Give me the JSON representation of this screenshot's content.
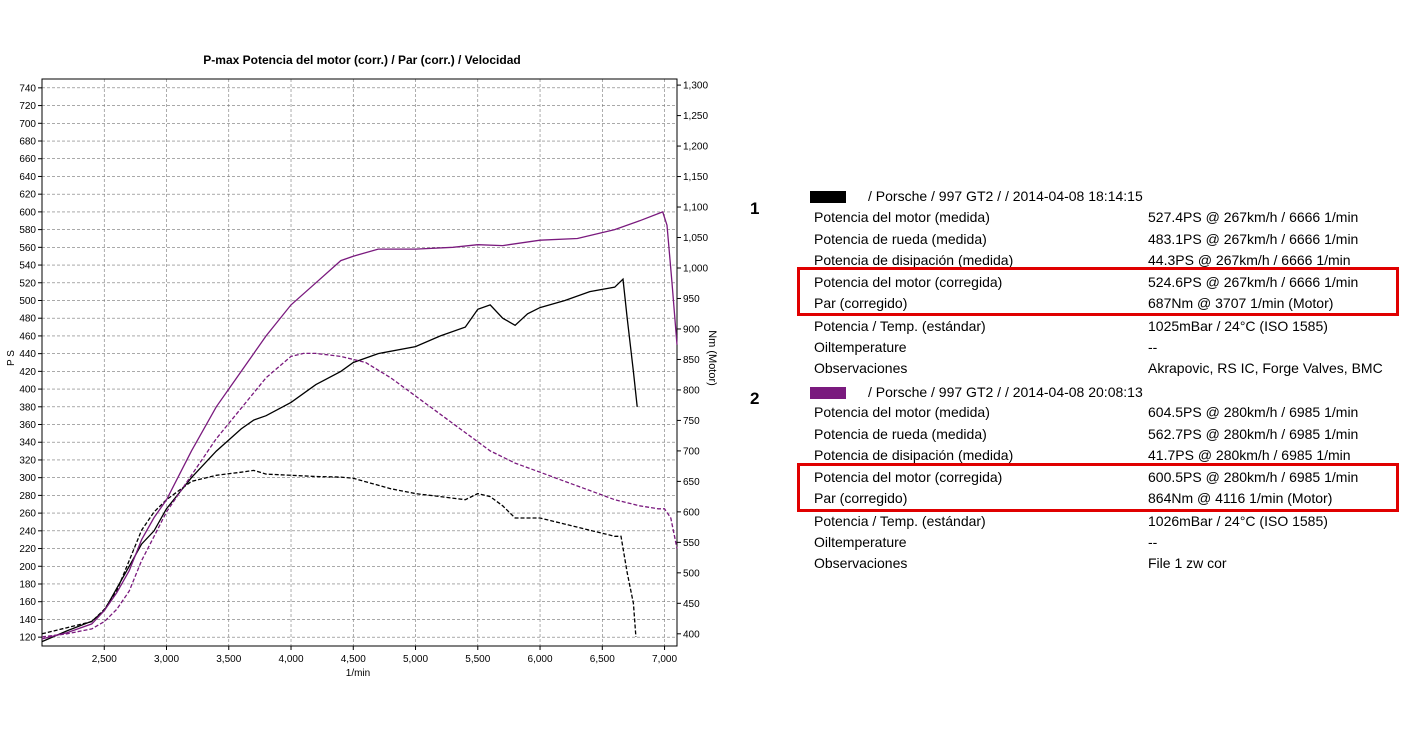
{
  "chart_data": {
    "type": "line",
    "title": "P-max Potencia del motor (corr.) / Par (corr.) / Velocidad",
    "xlabel": "1/min",
    "ylabel_left": "P S",
    "ylabel_right": "Nm (Motor)",
    "xlim": [
      2000,
      7100
    ],
    "ylim_left": [
      110,
      750
    ],
    "ylim_right": [
      380,
      1310
    ],
    "xticks": [
      2500,
      3000,
      3500,
      4000,
      4500,
      5000,
      5500,
      6000,
      6500,
      7000
    ],
    "xtick_labels": [
      "2,500",
      "3,000",
      "3,500",
      "4,000",
      "4,500",
      "5,000",
      "5,500",
      "6,000",
      "6,500",
      "7,000"
    ],
    "yticks_left": [
      120,
      140,
      160,
      180,
      200,
      220,
      240,
      260,
      280,
      300,
      320,
      340,
      360,
      380,
      400,
      420,
      440,
      460,
      480,
      500,
      520,
      540,
      560,
      580,
      600,
      620,
      640,
      660,
      680,
      700,
      720,
      740
    ],
    "yticks_right": [
      400,
      450,
      500,
      550,
      600,
      650,
      700,
      750,
      800,
      850,
      900,
      950,
      1000,
      1050,
      1100,
      1150,
      1200,
      1250,
      1300
    ],
    "ytick_right_labels": [
      "400",
      "450",
      "500",
      "550",
      "600",
      "650",
      "700",
      "750",
      "800",
      "850",
      "900",
      "950",
      "1,000",
      "1,050",
      "1,100",
      "1,150",
      "1,200",
      "1,250",
      "1,300"
    ],
    "grid": true,
    "series": [
      {
        "color": "#000000",
        "axis": "left",
        "style": "solid",
        "x": [
          2000,
          2200,
          2400,
          2500,
          2600,
          2700,
          2800,
          2900,
          3000,
          3200,
          3400,
          3600,
          3700,
          3800,
          4000,
          4200,
          4400,
          4500,
          4700,
          5000,
          5200,
          5400,
          5500,
          5600,
          5700,
          5800,
          5900,
          6000,
          6200,
          6400,
          6600,
          6666,
          6700,
          6750,
          6780
        ],
        "y": [
          115,
          127,
          138,
          150,
          175,
          200,
          225,
          240,
          265,
          300,
          330,
          355,
          365,
          370,
          385,
          405,
          420,
          430,
          440,
          448,
          460,
          470,
          490,
          495,
          480,
          472,
          485,
          492,
          500,
          510,
          515,
          524,
          480,
          420,
          380
        ]
      },
      {
        "color": "#000000",
        "axis": "right",
        "style": "dashed",
        "x": [
          2000,
          2200,
          2400,
          2500,
          2600,
          2700,
          2800,
          2900,
          3000,
          3200,
          3400,
          3600,
          3700,
          3800,
          4000,
          4200,
          4400,
          4500,
          4800,
          5000,
          5200,
          5400,
          5500,
          5600,
          5700,
          5800,
          6000,
          6200,
          6400,
          6600,
          6650,
          6700,
          6750,
          6770
        ],
        "y": [
          400,
          410,
          420,
          440,
          470,
          520,
          570,
          600,
          620,
          650,
          660,
          665,
          668,
          662,
          660,
          658,
          657,
          655,
          638,
          630,
          625,
          620,
          630,
          625,
          610,
          590,
          590,
          580,
          570,
          560,
          560,
          500,
          450,
          395
        ]
      },
      {
        "color": "#7a1a7e",
        "axis": "left",
        "style": "solid",
        "x": [
          2000,
          2200,
          2400,
          2500,
          2600,
          2700,
          2800,
          2900,
          3000,
          3200,
          3400,
          3600,
          3800,
          4000,
          4200,
          4400,
          4500,
          4700,
          5000,
          5300,
          5500,
          5700,
          6000,
          6300,
          6600,
          6800,
          6985,
          7020,
          7060,
          7100
        ],
        "y": [
          118,
          125,
          135,
          150,
          170,
          195,
          230,
          255,
          275,
          330,
          380,
          420,
          460,
          495,
          520,
          545,
          550,
          558,
          558,
          560,
          563,
          562,
          568,
          570,
          580,
          590,
          600,
          585,
          520,
          450
        ]
      },
      {
        "color": "#7a1a7e",
        "axis": "right",
        "style": "dashed",
        "x": [
          2000,
          2200,
          2400,
          2500,
          2600,
          2700,
          2800,
          2900,
          3000,
          3200,
          3400,
          3600,
          3800,
          4000,
          4100,
          4200,
          4400,
          4600,
          4800,
          5000,
          5200,
          5400,
          5600,
          5800,
          6000,
          6200,
          6400,
          6600,
          6800,
          6950,
          7000,
          7050,
          7100
        ],
        "y": [
          395,
          400,
          408,
          420,
          440,
          470,
          520,
          560,
          600,
          660,
          720,
          770,
          820,
          855,
          860,
          860,
          855,
          845,
          820,
          790,
          760,
          730,
          700,
          680,
          665,
          650,
          635,
          620,
          610,
          605,
          605,
          590,
          540
        ]
      }
    ]
  },
  "legend": {
    "runs": [
      {
        "number": "1",
        "swatch_color": "#000000",
        "header": "/ Porsche / 997 GT2 /  / 2014-04-08 18:14:15",
        "rows": [
          {
            "label": "Potencia del motor (medida)",
            "value": "527.4PS @ 267km/h / 6666 1/min"
          },
          {
            "label": "Potencia de rueda (medida)",
            "value": "483.1PS @ 267km/h / 6666 1/min"
          },
          {
            "label": "Potencia de disipación (medida)",
            "value": "44.3PS @ 267km/h / 6666 1/min"
          },
          {
            "label": "Potencia del motor (corregida)",
            "value": "524.6PS @ 267km/h / 6666 1/min"
          },
          {
            "label": "Par (corregido)",
            "value": "687Nm @ 3707 1/min (Motor)"
          },
          {
            "label": "Potencia / Temp. (estándar)",
            "value": "1025mBar / 24°C    (ISO 1585)"
          },
          {
            "label": "Oiltemperature",
            "value": "--"
          },
          {
            "label": "Observaciones",
            "value": "Akrapovic, RS IC, Forge Valves, BMC"
          }
        ]
      },
      {
        "number": "2",
        "swatch_color": "#7a1a7e",
        "header": "/ Porsche / 997 GT2 /  / 2014-04-08 20:08:13",
        "rows": [
          {
            "label": "Potencia del motor (medida)",
            "value": "604.5PS @ 280km/h / 6985 1/min"
          },
          {
            "label": "Potencia de rueda (medida)",
            "value": "562.7PS @ 280km/h / 6985 1/min"
          },
          {
            "label": "Potencia de disipación (medida)",
            "value": "41.7PS @ 280km/h / 6985 1/min"
          },
          {
            "label": "Potencia del motor (corregida)",
            "value": "600.5PS @ 280km/h / 6985 1/min"
          },
          {
            "label": "Par (corregido)",
            "value": "864Nm @ 4116 1/min (Motor)"
          },
          {
            "label": "Potencia / Temp. (estándar)",
            "value": "1026mBar / 24°C    (ISO 1585)"
          },
          {
            "label": "Oiltemperature",
            "value": "--"
          },
          {
            "label": "Observaciones",
            "value": "File 1 zw cor"
          }
        ]
      }
    ],
    "highlight_color": "#e00000"
  }
}
